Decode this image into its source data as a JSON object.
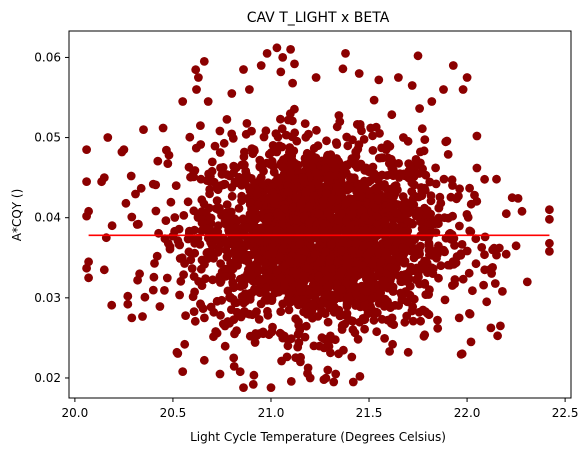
{
  "chart_data": {
    "type": "scatter",
    "title": "CAV T_LIGHT x BETA",
    "xlabel": "Light Cycle Temperature (Degrees Celsius)",
    "ylabel": "A*CQY ()",
    "xlim": [
      19.97,
      22.53
    ],
    "ylim": [
      0.0175,
      0.0633
    ],
    "x_ticks": [
      "20.0",
      "20.5",
      "21.0",
      "21.5",
      "22.0",
      "22.5"
    ],
    "y_ticks": [
      "0.02",
      "0.03",
      "0.04",
      "0.05",
      "0.06"
    ],
    "x_tick_values": [
      20.0,
      20.5,
      21.0,
      21.5,
      22.0,
      22.5
    ],
    "y_tick_values": [
      0.02,
      0.03,
      0.04,
      0.05,
      0.06
    ],
    "grid": false,
    "legend": "none",
    "point_color": "#8b0000",
    "line_color": "#ff0000",
    "cloud": {
      "x_mean": 21.25,
      "x_sd": 0.32,
      "y_mean": 0.0378,
      "y_sd": 0.0058
    },
    "series": [
      {
        "kind": "scatter",
        "points": [
          [
            20.06,
            0.0485
          ],
          [
            20.06,
            0.0445
          ],
          [
            20.07,
            0.0408
          ],
          [
            20.06,
            0.0402
          ],
          [
            20.06,
            0.0337
          ],
          [
            20.07,
            0.0325
          ],
          [
            20.07,
            0.0345
          ],
          [
            20.15,
            0.045
          ],
          [
            20.15,
            0.0335
          ],
          [
            20.16,
            0.0375
          ],
          [
            20.19,
            0.039
          ],
          [
            20.24,
            0.0482
          ],
          [
            20.25,
            0.0485
          ],
          [
            20.26,
            0.0418
          ],
          [
            20.27,
            0.0302
          ],
          [
            20.27,
            0.0292
          ],
          [
            20.29,
            0.0275
          ],
          [
            20.32,
            0.0322
          ],
          [
            20.33,
            0.033
          ],
          [
            20.35,
            0.051
          ],
          [
            20.4,
            0.0442
          ],
          [
            20.42,
            0.0352
          ],
          [
            20.45,
            0.0512
          ],
          [
            20.48,
            0.0478
          ],
          [
            20.52,
            0.0232
          ],
          [
            20.55,
            0.0545
          ],
          [
            20.55,
            0.0208
          ],
          [
            20.56,
            0.0242
          ],
          [
            20.62,
            0.056
          ],
          [
            20.63,
            0.0575
          ],
          [
            20.64,
            0.0515
          ],
          [
            20.66,
            0.0595
          ],
          [
            20.66,
            0.0222
          ],
          [
            20.68,
            0.0545
          ],
          [
            20.74,
            0.0205
          ],
          [
            20.8,
            0.0555
          ],
          [
            20.81,
            0.0225
          ],
          [
            20.86,
            0.0585
          ],
          [
            20.86,
            0.0188
          ],
          [
            20.89,
            0.056
          ],
          [
            20.91,
            0.0192
          ],
          [
            20.95,
            0.059
          ],
          [
            20.98,
            0.0605
          ],
          [
            21.0,
            0.0188
          ],
          [
            21.03,
            0.0612
          ],
          [
            21.05,
            0.0582
          ],
          [
            21.06,
            0.06
          ],
          [
            21.1,
            0.061
          ],
          [
            21.12,
            0.0592
          ],
          [
            21.15,
            0.022
          ],
          [
            21.2,
            0.02
          ],
          [
            21.23,
            0.0575
          ],
          [
            21.27,
            0.0198
          ],
          [
            21.29,
            0.021
          ],
          [
            21.32,
            0.0195
          ],
          [
            21.33,
            0.0205
          ],
          [
            21.38,
            0.0605
          ],
          [
            21.42,
            0.0195
          ],
          [
            21.45,
            0.058
          ],
          [
            21.55,
            0.0572
          ],
          [
            21.62,
            0.0242
          ],
          [
            21.65,
            0.0575
          ],
          [
            21.7,
            0.0232
          ],
          [
            21.72,
            0.0565
          ],
          [
            21.75,
            0.0602
          ],
          [
            21.78,
            0.0252
          ],
          [
            21.82,
            0.0545
          ],
          [
            21.85,
            0.0262
          ],
          [
            21.88,
            0.056
          ],
          [
            21.93,
            0.059
          ],
          [
            21.96,
            0.0275
          ],
          [
            21.98,
            0.056
          ],
          [
            22.0,
            0.0575
          ],
          [
            22.02,
            0.0245
          ],
          [
            22.05,
            0.0502
          ],
          [
            22.09,
            0.0335
          ],
          [
            22.1,
            0.0295
          ],
          [
            22.13,
            0.0338
          ],
          [
            22.15,
            0.0448
          ],
          [
            22.17,
            0.0265
          ],
          [
            22.2,
            0.0405
          ],
          [
            22.23,
            0.0425
          ],
          [
            22.25,
            0.0365
          ],
          [
            22.42,
            0.041
          ],
          [
            22.42,
            0.0398
          ],
          [
            22.42,
            0.0358
          ],
          [
            22.42,
            0.0368
          ],
          [
            22.28,
            0.0408
          ],
          [
            22.18,
            0.0308
          ],
          [
            22.05,
            0.0462
          ]
        ]
      },
      {
        "kind": "line",
        "x": [
          20.07,
          22.42
        ],
        "y": [
          0.0378,
          0.0378
        ]
      }
    ]
  }
}
